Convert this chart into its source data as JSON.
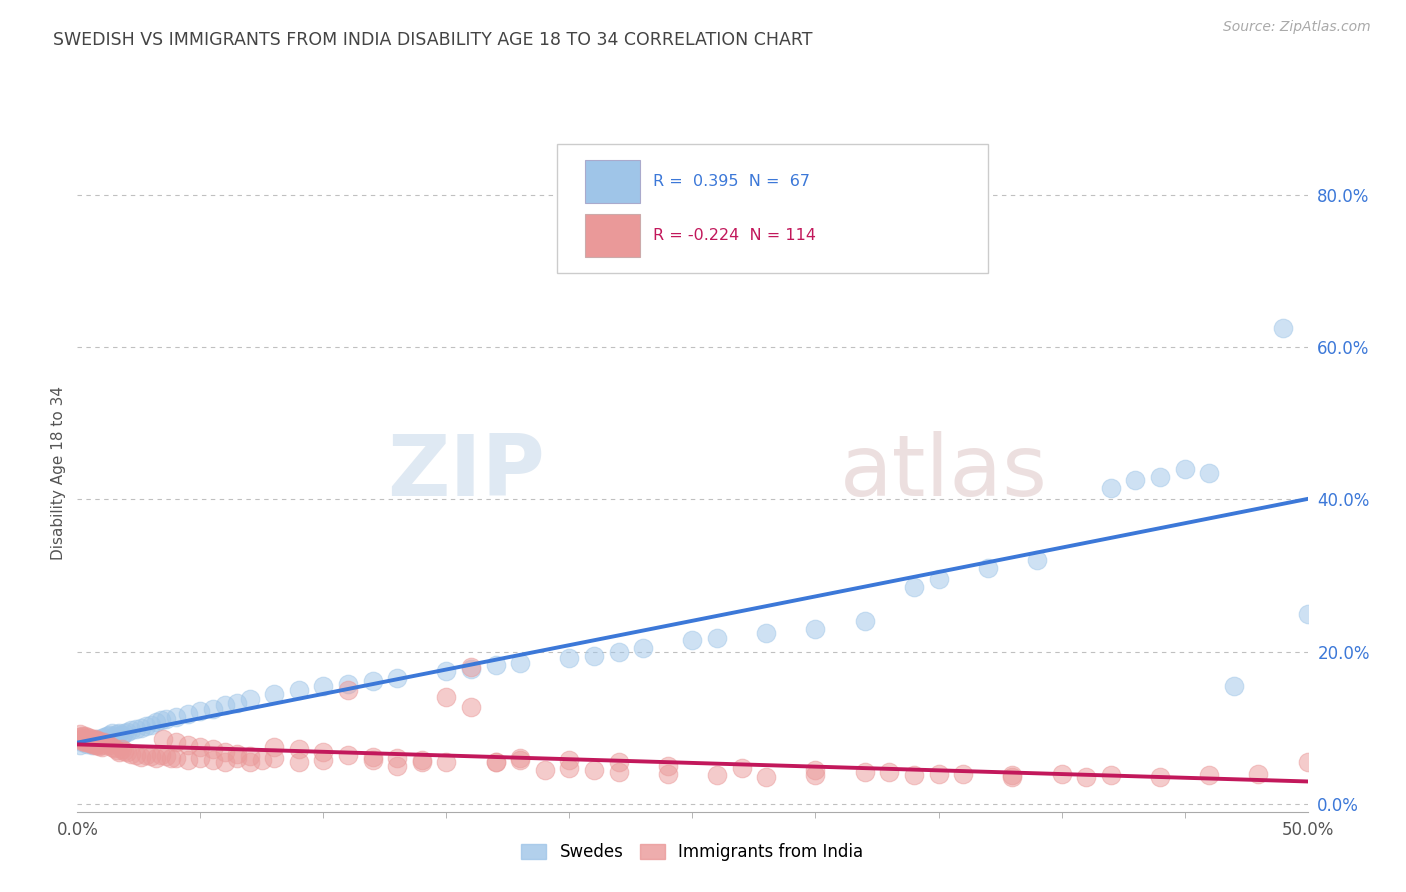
{
  "title": "SWEDISH VS IMMIGRANTS FROM INDIA DISABILITY AGE 18 TO 34 CORRELATION CHART",
  "source": "Source: ZipAtlas.com",
  "ylabel": "Disability Age 18 to 34",
  "ytick_labels": [
    "0.0%",
    "20.0%",
    "40.0%",
    "60.0%",
    "80.0%"
  ],
  "ytick_values": [
    0.0,
    0.2,
    0.4,
    0.6,
    0.8
  ],
  "xlim": [
    0.0,
    0.5
  ],
  "ylim": [
    -0.01,
    0.88
  ],
  "swedes_color": "#9fc5e8",
  "india_color": "#ea9999",
  "swedes_line_color": "#3c78d8",
  "india_line_color": "#c2185b",
  "R_swedes": 0.395,
  "N_swedes": 67,
  "R_india": -0.224,
  "N_india": 114,
  "legend_label_swedes": "Swedes",
  "legend_label_india": "Immigrants from India",
  "watermark_zip": "ZIP",
  "watermark_atlas": "atlas",
  "background_color": "#ffffff",
  "grid_color": "#c0c0c0",
  "title_color": "#444444",
  "swedes_x": [
    0.001,
    0.002,
    0.003,
    0.004,
    0.005,
    0.006,
    0.006,
    0.007,
    0.008,
    0.009,
    0.01,
    0.011,
    0.012,
    0.013,
    0.014,
    0.015,
    0.016,
    0.017,
    0.018,
    0.019,
    0.02,
    0.022,
    0.024,
    0.026,
    0.028,
    0.03,
    0.032,
    0.034,
    0.036,
    0.04,
    0.045,
    0.05,
    0.055,
    0.06,
    0.065,
    0.07,
    0.08,
    0.09,
    0.1,
    0.11,
    0.12,
    0.13,
    0.15,
    0.16,
    0.17,
    0.18,
    0.2,
    0.21,
    0.22,
    0.23,
    0.25,
    0.26,
    0.28,
    0.3,
    0.32,
    0.34,
    0.35,
    0.37,
    0.39,
    0.42,
    0.43,
    0.44,
    0.45,
    0.46,
    0.47,
    0.49,
    0.5
  ],
  "swedes_y": [
    0.078,
    0.082,
    0.085,
    0.079,
    0.083,
    0.08,
    0.077,
    0.082,
    0.085,
    0.083,
    0.087,
    0.088,
    0.09,
    0.091,
    0.093,
    0.089,
    0.092,
    0.094,
    0.091,
    0.093,
    0.095,
    0.097,
    0.099,
    0.1,
    0.102,
    0.104,
    0.108,
    0.11,
    0.112,
    0.115,
    0.118,
    0.122,
    0.125,
    0.13,
    0.133,
    0.138,
    0.145,
    0.15,
    0.155,
    0.158,
    0.162,
    0.165,
    0.175,
    0.178,
    0.182,
    0.185,
    0.192,
    0.195,
    0.2,
    0.205,
    0.215,
    0.218,
    0.225,
    0.23,
    0.24,
    0.285,
    0.295,
    0.31,
    0.32,
    0.415,
    0.425,
    0.43,
    0.44,
    0.435,
    0.155,
    0.625,
    0.25
  ],
  "india_x": [
    0.001,
    0.001,
    0.001,
    0.002,
    0.002,
    0.002,
    0.003,
    0.003,
    0.003,
    0.004,
    0.004,
    0.004,
    0.005,
    0.005,
    0.005,
    0.006,
    0.006,
    0.006,
    0.007,
    0.007,
    0.007,
    0.008,
    0.008,
    0.008,
    0.009,
    0.009,
    0.009,
    0.01,
    0.01,
    0.01,
    0.011,
    0.012,
    0.013,
    0.014,
    0.015,
    0.016,
    0.017,
    0.018,
    0.019,
    0.02,
    0.022,
    0.024,
    0.026,
    0.028,
    0.03,
    0.032,
    0.034,
    0.036,
    0.038,
    0.04,
    0.045,
    0.05,
    0.055,
    0.06,
    0.065,
    0.07,
    0.075,
    0.08,
    0.09,
    0.1,
    0.11,
    0.12,
    0.13,
    0.14,
    0.15,
    0.16,
    0.17,
    0.18,
    0.19,
    0.2,
    0.21,
    0.22,
    0.24,
    0.26,
    0.28,
    0.3,
    0.32,
    0.34,
    0.36,
    0.38,
    0.4,
    0.42,
    0.44,
    0.46,
    0.48,
    0.5,
    0.035,
    0.04,
    0.045,
    0.05,
    0.055,
    0.06,
    0.065,
    0.07,
    0.08,
    0.09,
    0.1,
    0.11,
    0.12,
    0.13,
    0.14,
    0.15,
    0.16,
    0.17,
    0.18,
    0.2,
    0.22,
    0.24,
    0.27,
    0.3,
    0.33,
    0.35,
    0.38,
    0.41
  ],
  "india_y": [
    0.092,
    0.088,
    0.085,
    0.09,
    0.086,
    0.083,
    0.089,
    0.085,
    0.082,
    0.088,
    0.084,
    0.081,
    0.087,
    0.083,
    0.08,
    0.086,
    0.082,
    0.079,
    0.085,
    0.081,
    0.078,
    0.084,
    0.08,
    0.077,
    0.083,
    0.079,
    0.076,
    0.082,
    0.078,
    0.075,
    0.081,
    0.079,
    0.077,
    0.075,
    0.073,
    0.071,
    0.069,
    0.072,
    0.07,
    0.068,
    0.066,
    0.064,
    0.062,
    0.065,
    0.063,
    0.061,
    0.065,
    0.063,
    0.061,
    0.06,
    0.058,
    0.06,
    0.058,
    0.055,
    0.06,
    0.055,
    0.058,
    0.06,
    0.055,
    0.058,
    0.15,
    0.058,
    0.05,
    0.055,
    0.14,
    0.128,
    0.055,
    0.058,
    0.045,
    0.048,
    0.045,
    0.042,
    0.04,
    0.038,
    0.035,
    0.038,
    0.042,
    0.038,
    0.04,
    0.035,
    0.04,
    0.038,
    0.035,
    0.038,
    0.04,
    0.055,
    0.085,
    0.082,
    0.078,
    0.075,
    0.072,
    0.069,
    0.066,
    0.063,
    0.075,
    0.072,
    0.068,
    0.065,
    0.062,
    0.06,
    0.058,
    0.055,
    0.18,
    0.055,
    0.06,
    0.058,
    0.055,
    0.05,
    0.048,
    0.045,
    0.042,
    0.04,
    0.038,
    0.035
  ]
}
